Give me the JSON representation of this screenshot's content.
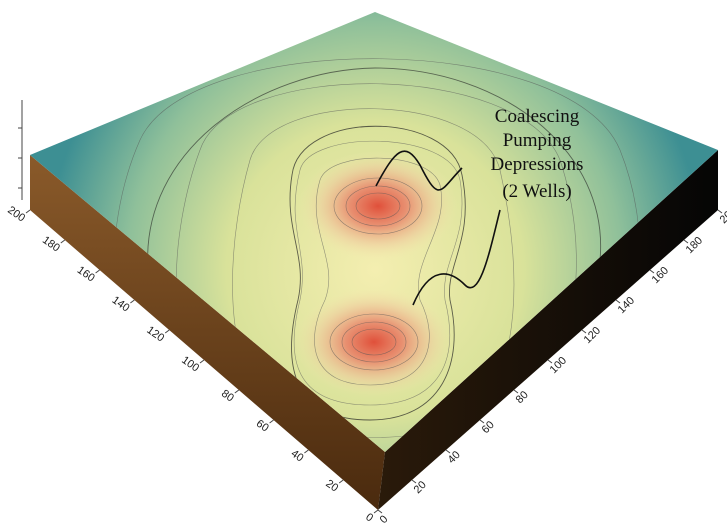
{
  "annotation": {
    "lines": [
      "Coalescing",
      "Pumping",
      "Depressions",
      "(2 Wells)"
    ]
  },
  "axes": {
    "left_ticks": [
      0,
      20,
      40,
      60,
      80,
      100,
      120,
      140,
      160,
      180,
      200
    ],
    "right_ticks": [
      0,
      20,
      40,
      60,
      80,
      100,
      120,
      140,
      160,
      180,
      200
    ]
  }
}
